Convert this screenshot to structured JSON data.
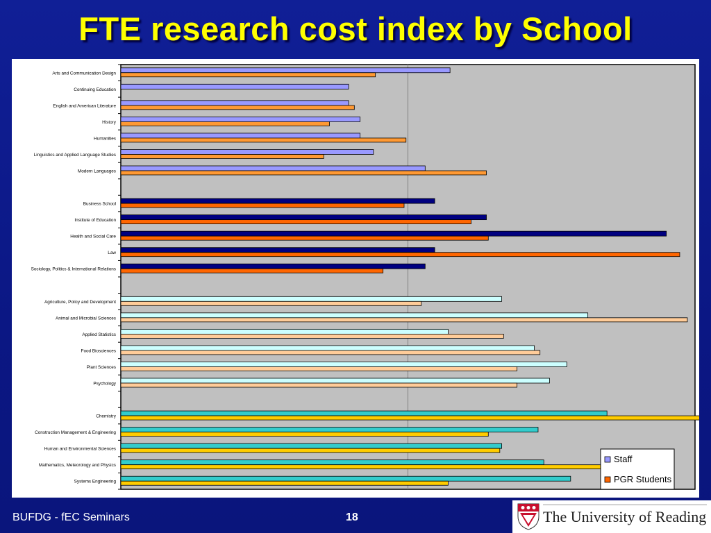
{
  "slide": {
    "title": "FTE research cost index by School",
    "footer_left": "BUFDG - fEC Seminars",
    "page_number": "18",
    "logo_text": "The University of Reading"
  },
  "chart_data": {
    "type": "bar",
    "orientation": "horizontal",
    "title": "",
    "xlabel": "",
    "ylabel": "",
    "xlim": [
      0,
      3
    ],
    "grid": "vertical-gridline",
    "legend_position": "bottom-right",
    "series_names": [
      "Staff",
      "PGR Students"
    ],
    "colors": {
      "plot_bg": "#c0c0c0",
      "gridline": "#808080",
      "group1_staff": "#9999ff",
      "group1_pgr": "#ff9933",
      "group2_staff": "#000080",
      "group2_pgr": "#ff6600",
      "group3_staff": "#ccffff",
      "group3_pgr": "#ffcc99",
      "group4_staff": "#33cccc",
      "group4_pgr": "#ffcc00",
      "legend_staff": "#9999ff",
      "legend_pgr": "#ff6600"
    },
    "groups": [
      {
        "id": "group1",
        "categories": [
          {
            "label": "Arts and Communication Design",
            "staff": 1.72,
            "pgr": 1.33
          },
          {
            "label": "Continuing Education",
            "staff": 1.19,
            "pgr": null
          },
          {
            "label": "English and American Literature",
            "staff": 1.19,
            "pgr": 1.22
          },
          {
            "label": "History",
            "staff": 1.25,
            "pgr": 1.09
          },
          {
            "label": "Humanities",
            "staff": 1.25,
            "pgr": 1.49
          },
          {
            "label": "Linguistics and Applied Language Studies",
            "staff": 1.32,
            "pgr": 1.06
          },
          {
            "label": "Modern Languages",
            "staff": 1.59,
            "pgr": 1.91
          }
        ]
      },
      {
        "id": "group2",
        "categories": [
          {
            "label": "Business School",
            "staff": 1.64,
            "pgr": 1.48
          },
          {
            "label": "Institute of Education",
            "staff": 1.91,
            "pgr": 1.83
          },
          {
            "label": "Health and Social Care",
            "staff": 2.85,
            "pgr": 1.92
          },
          {
            "label": "Law",
            "staff": 1.64,
            "pgr": 2.92
          },
          {
            "label": "Sociology, Politics & International Relations",
            "staff": 1.59,
            "pgr": 1.37
          }
        ]
      },
      {
        "id": "group3",
        "categories": [
          {
            "label": "Agriculture, Policy and Development",
            "staff": 1.99,
            "pgr": 1.57
          },
          {
            "label": "Animal and Microbial Sciences",
            "staff": 2.44,
            "pgr": 2.96
          },
          {
            "label": "Applied Statistics",
            "staff": 1.71,
            "pgr": 2.0
          },
          {
            "label": "Food Biosciences",
            "staff": 2.16,
            "pgr": 2.19
          },
          {
            "label": "Plant Sciences",
            "staff": 2.33,
            "pgr": 2.07
          },
          {
            "label": "Psychology",
            "staff": 2.24,
            "pgr": 2.07
          }
        ]
      },
      {
        "id": "group4",
        "categories": [
          {
            "label": "Chemistry",
            "staff": 2.54,
            "pgr": 3.67
          },
          {
            "label": "Construction Management & Engineering",
            "staff": 2.18,
            "pgr": 1.92
          },
          {
            "label": "Human and Environmental Sciences",
            "staff": 1.99,
            "pgr": 1.98
          },
          {
            "label": "Mathematics, Meteorology and Physics",
            "staff": 2.21,
            "pgr": 2.69
          },
          {
            "label": "Systems Engineering",
            "staff": 2.35,
            "pgr": 1.71
          }
        ]
      }
    ]
  }
}
